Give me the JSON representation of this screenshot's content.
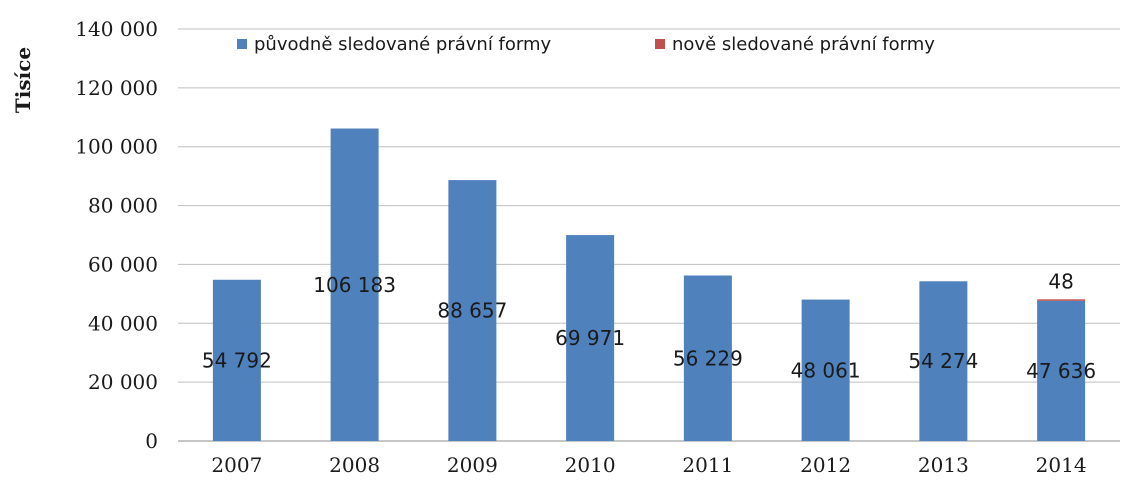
{
  "chart_data": {
    "type": "bar",
    "stacked": true,
    "title": "",
    "xlabel": "",
    "ylabel": "Tisíce",
    "ylim": [
      0,
      140000
    ],
    "yticks": [
      0,
      20000,
      40000,
      60000,
      80000,
      100000,
      120000,
      140000
    ],
    "ytick_labels": [
      "0",
      "20 000",
      "40 000",
      "60 000",
      "80 000",
      "100 000",
      "120 000",
      "140 000"
    ],
    "categories": [
      "2007",
      "2008",
      "2009",
      "2010",
      "2011",
      "2012",
      "2013",
      "2014"
    ],
    "series": [
      {
        "name": "původně sledované právní formy",
        "color": "#4f81bd",
        "values": [
          54792,
          106183,
          88657,
          69971,
          56229,
          48061,
          54274,
          47636
        ],
        "labels": [
          "54 792",
          "106 183",
          "88 657",
          "69 971",
          "56 229",
          "48 061",
          "54 274",
          "47 636"
        ]
      },
      {
        "name": "nově sledované právní formy",
        "color": "#c0504d",
        "values": [
          0,
          0,
          0,
          0,
          0,
          0,
          0,
          48
        ],
        "labels": [
          "",
          "",
          "",
          "",
          "",
          "",
          "",
          "48"
        ]
      }
    ],
    "legend_position": "top",
    "grid": true,
    "grid_axis": "y"
  }
}
